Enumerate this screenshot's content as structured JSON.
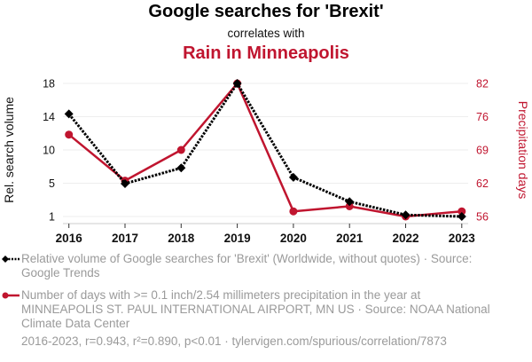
{
  "header": {
    "title": "Google searches for 'Brexit'",
    "subtitle": "correlates with",
    "title2": "Rain in Minneapolis"
  },
  "colors": {
    "series1": "#000000",
    "series2": "#c0152f",
    "grid": "#eeeeee",
    "axis_text": "#111111",
    "legend_text": "#9a9a9a"
  },
  "chart_data": {
    "type": "line",
    "title": "Google searches for 'Brexit' correlates with Rain in Minneapolis",
    "x": [
      "2016",
      "2017",
      "2018",
      "2019",
      "2020",
      "2021",
      "2022",
      "2023"
    ],
    "xlabel": "",
    "y_left": {
      "label": "Rel. search volume",
      "range": [
        1,
        18
      ],
      "ticks": [
        "1",
        "5",
        "10",
        "14",
        "18"
      ]
    },
    "y_right": {
      "label": "Precipitation days",
      "range": [
        56,
        82
      ],
      "ticks": [
        "56",
        "62",
        "69",
        "76",
        "82"
      ]
    },
    "grid": true,
    "series": [
      {
        "name": "Relative volume of Google searches for 'Brexit' (Worldwide, without quotes) · Source: Google Trends",
        "axis": "left",
        "style": "dotted-line-diamond",
        "color": "#000000",
        "values": [
          14.1,
          5.2,
          7.2,
          18,
          6,
          2.9,
          1.2,
          1
        ]
      },
      {
        "name": "Number of days with >= 0.1 inch/2.54 millimeters precipitation in the year at MINNEAPOLIS ST. PAUL INTERNATIONAL AIRPORT, MN US · Source: NOAA National Climate Data Center",
        "axis": "right",
        "style": "solid-line-circle",
        "color": "#c0152f",
        "values": [
          72,
          63,
          69,
          82,
          57,
          58,
          56,
          57
        ]
      }
    ],
    "legend_position": "bottom"
  },
  "legend": {
    "items": [
      {
        "label": "Relative volume of Google searches for 'Brexit' (Worldwide, without quotes) · Source: Google Trends"
      },
      {
        "label": "Number of days with >= 0.1 inch/2.54 millimeters precipitation in the year at MINNEAPOLIS ST. PAUL INTERNATIONAL AIRPORT, MN US · Source: NOAA National Climate Data Center"
      }
    ]
  },
  "footer": {
    "stats": "2016-2023, r=0.943, r²=0.890, p<0.01 · tylervigen.com/spurious/correlation/7873"
  }
}
